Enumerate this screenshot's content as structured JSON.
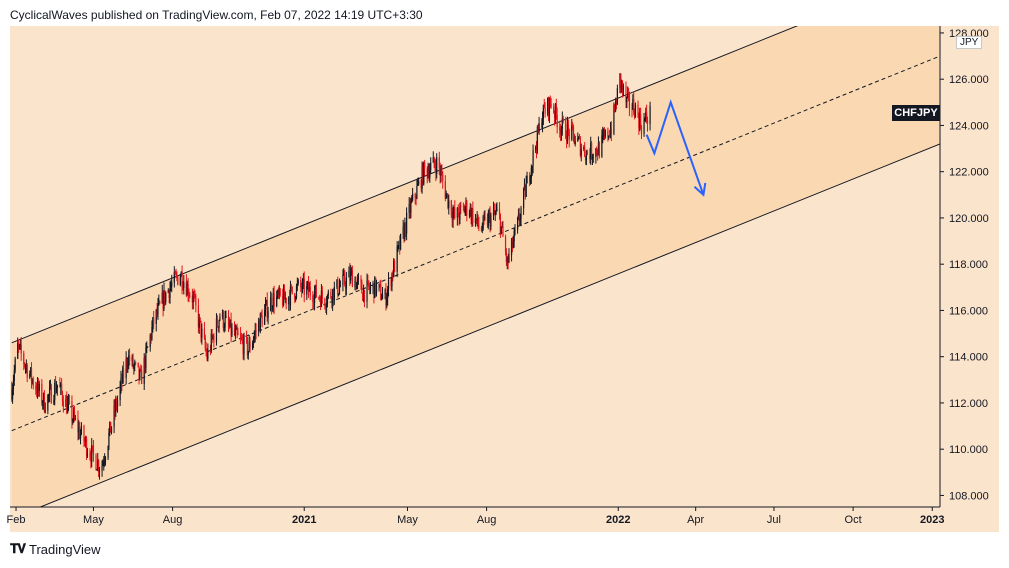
{
  "header": {
    "text": "CyclicalWaves published on TradingView.com, Feb 07, 2022 14:19 UTC+3:30"
  },
  "footer": {
    "brand": "TradingView",
    "logo": "tradingview-logo-icon"
  },
  "colors": {
    "background": "#fbe4cc",
    "channel_fill": "#fad8b2",
    "up": "#131722",
    "down": "#e0141e",
    "projection": "#2962ff"
  },
  "chart_data": {
    "type": "candlestick",
    "symbol": "CHFJPY",
    "unit": "JPY",
    "ylim": [
      107.5,
      128.3
    ],
    "xlim": [
      "2020-01-25",
      "2023-01-10"
    ],
    "y_ticks": [
      "108.000",
      "110.000",
      "112.000",
      "114.000",
      "116.000",
      "118.000",
      "120.000",
      "122.000",
      "124.000",
      "126.000",
      "128.000"
    ],
    "x_ticks": [
      {
        "label": "Feb",
        "date": "2020-02-01"
      },
      {
        "label": "May",
        "date": "2020-05-01"
      },
      {
        "label": "Aug",
        "date": "2020-08-01"
      },
      {
        "label": "2021",
        "date": "2021-01-01"
      },
      {
        "label": "May",
        "date": "2021-05-01"
      },
      {
        "label": "Aug",
        "date": "2021-08-01"
      },
      {
        "label": "2022",
        "date": "2022-01-01"
      },
      {
        "label": "Apr",
        "date": "2022-04-01"
      },
      {
        "label": "Jul",
        "date": "2022-07-01"
      },
      {
        "label": "Oct",
        "date": "2022-10-01"
      },
      {
        "label": "2023",
        "date": "2023-01-01"
      }
    ],
    "price_anchors": [
      [
        "2020-01-27",
        112.6
      ],
      [
        "2020-02-03",
        114.4
      ],
      [
        "2020-02-20",
        113.0
      ],
      [
        "2020-03-05",
        112.0
      ],
      [
        "2020-03-20",
        112.8
      ],
      [
        "2020-04-05",
        111.5
      ],
      [
        "2020-04-25",
        110.0
      ],
      [
        "2020-05-10",
        109.2
      ],
      [
        "2020-05-25",
        111.5
      ],
      [
        "2020-06-10",
        114.0
      ],
      [
        "2020-06-25",
        113.0
      ],
      [
        "2020-07-10",
        115.5
      ],
      [
        "2020-07-25",
        116.8
      ],
      [
        "2020-08-10",
        117.6
      ],
      [
        "2020-08-25",
        116.5
      ],
      [
        "2020-09-10",
        114.0
      ],
      [
        "2020-09-25",
        115.8
      ],
      [
        "2020-10-10",
        115.0
      ],
      [
        "2020-10-28",
        114.3
      ],
      [
        "2020-11-10",
        115.5
      ],
      [
        "2020-11-25",
        116.5
      ],
      [
        "2020-12-10",
        116.5
      ],
      [
        "2020-12-25",
        117.0
      ],
      [
        "2021-01-10",
        116.8
      ],
      [
        "2021-01-25",
        116.5
      ],
      [
        "2021-02-10",
        117.0
      ],
      [
        "2021-02-25",
        117.5
      ],
      [
        "2021-03-10",
        116.8
      ],
      [
        "2021-03-25",
        117.0
      ],
      [
        "2021-04-05",
        116.5
      ],
      [
        "2021-04-20",
        118.5
      ],
      [
        "2021-05-05",
        120.5
      ],
      [
        "2021-05-20",
        122.0
      ],
      [
        "2021-06-05",
        122.4
      ],
      [
        "2021-06-15",
        121.0
      ],
      [
        "2021-06-25",
        120.0
      ],
      [
        "2021-07-10",
        120.5
      ],
      [
        "2021-07-25",
        119.5
      ],
      [
        "2021-08-05",
        120.0
      ],
      [
        "2021-08-15",
        120.2
      ],
      [
        "2021-08-25",
        118.0
      ],
      [
        "2021-09-05",
        119.5
      ],
      [
        "2021-09-20",
        122.0
      ],
      [
        "2021-10-05",
        124.5
      ],
      [
        "2021-10-15",
        125.0
      ],
      [
        "2021-10-25",
        124.0
      ],
      [
        "2021-11-10",
        123.5
      ],
      [
        "2021-11-25",
        122.8
      ],
      [
        "2021-12-10",
        123.0
      ],
      [
        "2021-12-25",
        124.0
      ],
      [
        "2022-01-03",
        126.0
      ],
      [
        "2022-01-10",
        125.0
      ],
      [
        "2022-01-20",
        124.8
      ],
      [
        "2022-01-28",
        124.0
      ],
      [
        "2022-02-07",
        124.5
      ]
    ],
    "channel": {
      "upper": [
        [
          "2020-01-27",
          114.6
        ],
        [
          "2023-01-10",
          130.8
        ]
      ],
      "middle": [
        [
          "2020-01-27",
          110.8
        ],
        [
          "2023-01-10",
          127.0
        ]
      ],
      "lower": [
        [
          "2020-01-27",
          107.0
        ],
        [
          "2023-01-10",
          123.2
        ]
      ]
    },
    "projection": [
      [
        "2022-02-03",
        123.6
      ],
      [
        "2022-02-12",
        122.8
      ],
      [
        "2022-03-03",
        125.0
      ],
      [
        "2022-04-10",
        121.0
      ]
    ]
  }
}
